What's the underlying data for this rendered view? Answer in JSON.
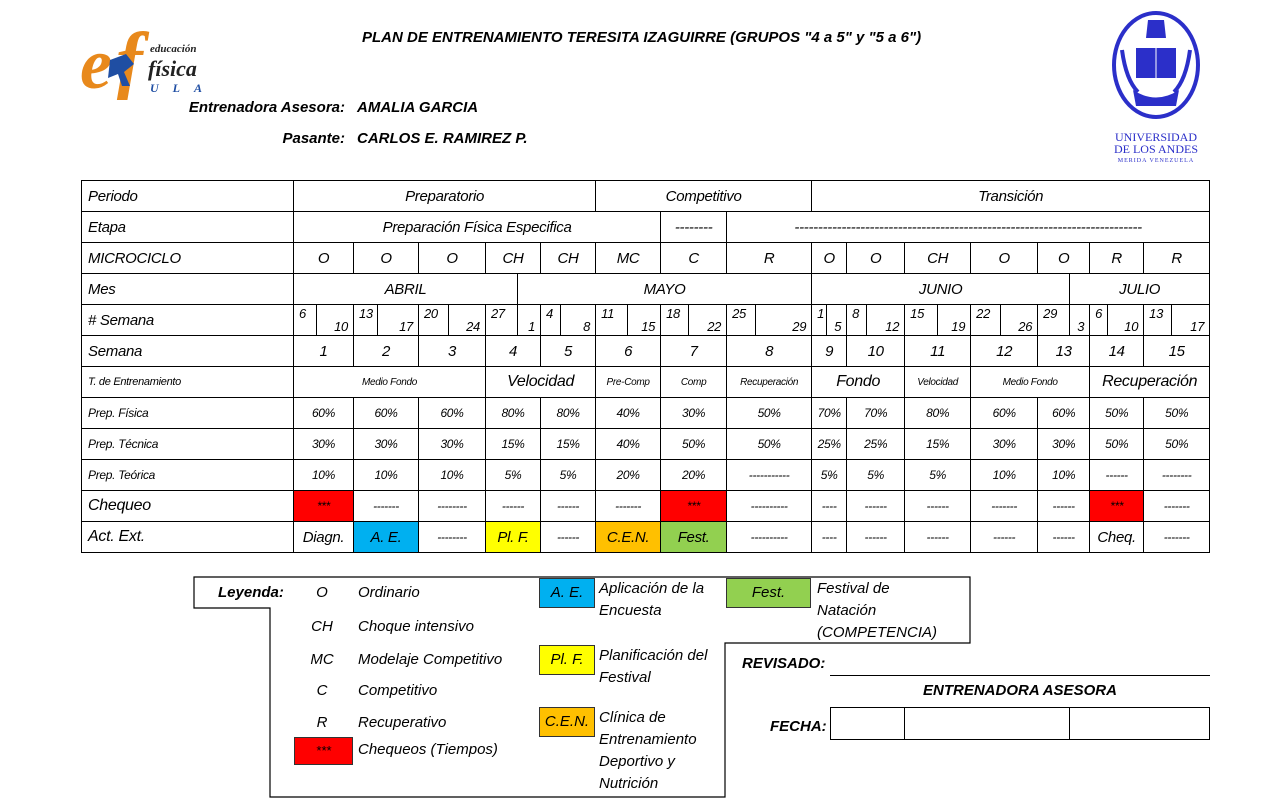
{
  "header": {
    "title": "PLAN DE ENTRENAMIENTO TERESITA IZAGUIRRE (GRUPOS \"4 a 5\" y \"5 a 6\")",
    "coach_label": "Entrenadora Asesora:",
    "coach_name": "AMALIA GARCIA",
    "intern_label": "Pasante:",
    "intern_name": "CARLOS E. RAMIREZ P.",
    "logo_left": "educación física ULA",
    "logo_right": "UNIVERSIDAD DE LOS ANDES MERIDA VENEZUELA"
  },
  "table": {
    "periodo": {
      "label": "Periodo",
      "cells": [
        "Preparatorio",
        "Competitivo",
        "Transición"
      ]
    },
    "etapa": {
      "label": "Etapa",
      "cells": [
        "Preparación Física Especifica",
        "--------",
        "--------------------------------------------------------------------------"
      ]
    },
    "microciclo": {
      "label": "MICROCICLO",
      "cells": [
        "O",
        "O",
        "O",
        "CH",
        "CH",
        "MC",
        "C",
        "R",
        "O",
        "O",
        "CH",
        "O",
        "O",
        "R",
        "R"
      ]
    },
    "mes": {
      "label": "Mes",
      "cells": [
        "ABRIL",
        "MAYO",
        "JUNIO",
        "JULIO"
      ]
    },
    "num_semana": {
      "label": "# Semana",
      "cells": [
        [
          "6",
          "10"
        ],
        [
          "13",
          "17"
        ],
        [
          "20",
          "24"
        ],
        [
          "27",
          "1"
        ],
        [
          "4",
          "8"
        ],
        [
          "11",
          "15"
        ],
        [
          "18",
          "22"
        ],
        [
          "25",
          "29"
        ],
        [
          "1",
          "5"
        ],
        [
          "8",
          "12"
        ],
        [
          "15",
          "19"
        ],
        [
          "22",
          "26"
        ],
        [
          "29",
          "3"
        ],
        [
          "6",
          "10"
        ],
        [
          "13",
          "17"
        ]
      ]
    },
    "semana": {
      "label": "Semana",
      "cells": [
        "1",
        "2",
        "3",
        "4",
        "5",
        "6",
        "7",
        "8",
        "9",
        "10",
        "11",
        "12",
        "13",
        "14",
        "15"
      ]
    },
    "t_entrenamiento": {
      "label": "T. de Entrenamiento",
      "cells": [
        "Medio Fondo",
        "Velocidad",
        "Pre-Comp",
        "Comp",
        "Recuperación",
        "Fondo",
        "Velocidad",
        "Medio Fondo",
        "Recuperación"
      ]
    },
    "prep_fisica": {
      "label": "Prep. Física",
      "cells": [
        "60%",
        "60%",
        "60%",
        "80%",
        "80%",
        "40%",
        "30%",
        "50%",
        "70%",
        "70%",
        "80%",
        "60%",
        "60%",
        "50%",
        "50%"
      ]
    },
    "prep_tecnica": {
      "label": "Prep. Técnica",
      "cells": [
        "30%",
        "30%",
        "30%",
        "15%",
        "15%",
        "40%",
        "50%",
        "50%",
        "25%",
        "25%",
        "15%",
        "30%",
        "30%",
        "50%",
        "50%"
      ]
    },
    "prep_teorica": {
      "label": "Prep. Teórica",
      "cells": [
        "10%",
        "10%",
        "10%",
        "5%",
        "5%",
        "20%",
        "20%",
        "-----------",
        "5%",
        "5%",
        "5%",
        "10%",
        "10%",
        "------",
        "--------"
      ]
    },
    "chequeo": {
      "label": "Chequeo",
      "cells": [
        {
          "text": "***",
          "color": "#ff0000"
        },
        {
          "text": "-------"
        },
        {
          "text": "--------"
        },
        {
          "text": "------"
        },
        {
          "text": "------"
        },
        {
          "text": "-------"
        },
        {
          "text": "***",
          "color": "#ff0000"
        },
        {
          "text": "----------"
        },
        {
          "text": "----"
        },
        {
          "text": "------"
        },
        {
          "text": "------"
        },
        {
          "text": "-------"
        },
        {
          "text": "------"
        },
        {
          "text": "***",
          "color": "#ff0000"
        },
        {
          "text": "-------"
        }
      ]
    },
    "act_ext": {
      "label": "Act. Ext.",
      "cells": [
        {
          "text": "Diagn."
        },
        {
          "text": "A. E.",
          "color": "#00b0f0"
        },
        {
          "text": "--------"
        },
        {
          "text": "Pl. F.",
          "color": "#ffff00"
        },
        {
          "text": "------"
        },
        {
          "text": "C.E.N.",
          "color": "#ffc000"
        },
        {
          "text": "Fest.",
          "color": "#92d050"
        },
        {
          "text": "----------"
        },
        {
          "text": "----"
        },
        {
          "text": "------"
        },
        {
          "text": "------"
        },
        {
          "text": "------"
        },
        {
          "text": "------"
        },
        {
          "text": "Cheq."
        },
        {
          "text": "-------"
        }
      ]
    }
  },
  "legend": {
    "title": "Leyenda:",
    "codes": [
      {
        "code": "O",
        "meaning": "Ordinario"
      },
      {
        "code": "CH",
        "meaning": "Choque intensivo"
      },
      {
        "code": "MC",
        "meaning": "Modelaje Competitivo"
      },
      {
        "code": "C",
        "meaning": "Competitivo"
      },
      {
        "code": "R",
        "meaning": "Recuperativo"
      }
    ],
    "check": {
      "code": "***",
      "meaning": "Chequeos (Tiempos)",
      "color": "#ff0000"
    },
    "activities": [
      {
        "code": "A. E.",
        "lines": [
          "Aplicación de la",
          "Encuesta"
        ],
        "color": "#00b0f0"
      },
      {
        "code": "Pl. F.",
        "lines": [
          "Planificación del",
          "Festival"
        ],
        "color": "#ffff00"
      },
      {
        "code": "C.E.N.",
        "lines": [
          "Clínica de",
          "Entrenamiento",
          "Deportivo y",
          "Nutrición"
        ],
        "color": "#ffc000"
      },
      {
        "code": "Fest.",
        "lines": [
          "Festival de",
          "Natación",
          "(COMPETENCIA)"
        ],
        "color": "#92d050"
      }
    ]
  },
  "signature": {
    "revisado_label": "REVISADO:",
    "role": "ENTRENADORA ASESORA",
    "fecha_label": "FECHA:"
  }
}
